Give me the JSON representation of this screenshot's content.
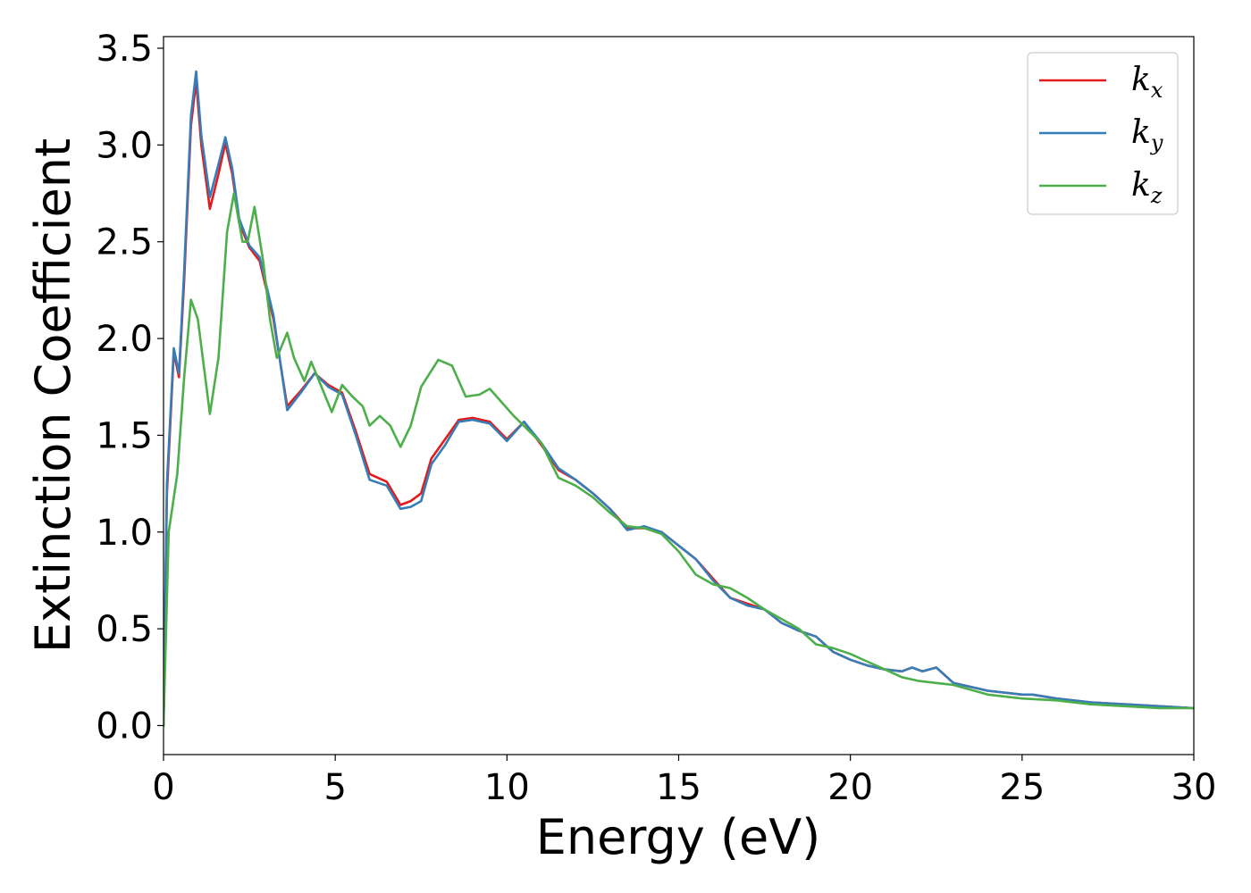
{
  "chart_data": {
    "type": "line",
    "xlabel": "Energy (eV)",
    "ylabel": "Extinction Coefficient",
    "xlim": [
      0,
      30
    ],
    "ylim": [
      -0.15,
      3.56
    ],
    "xticks": [
      "0",
      "5",
      "10",
      "15",
      "20",
      "25",
      "30"
    ],
    "yticks": [
      "0.0",
      "0.5",
      "1.0",
      "1.5",
      "2.0",
      "2.5",
      "3.0",
      "3.5"
    ],
    "grid": false,
    "legend_position": "top-right",
    "series": [
      {
        "name": "k",
        "subscript": "x",
        "color": "#e41a1c",
        "points": [
          [
            0,
            0
          ],
          [
            0.1,
            1.2
          ],
          [
            0.3,
            1.93
          ],
          [
            0.45,
            1.8
          ],
          [
            0.6,
            2.3
          ],
          [
            0.8,
            3.1
          ],
          [
            0.95,
            3.33
          ],
          [
            1.1,
            3.0
          ],
          [
            1.35,
            2.67
          ],
          [
            1.6,
            2.85
          ],
          [
            1.8,
            3.01
          ],
          [
            2.0,
            2.85
          ],
          [
            2.2,
            2.6
          ],
          [
            2.5,
            2.47
          ],
          [
            2.8,
            2.4
          ],
          [
            3.2,
            2.1
          ],
          [
            3.6,
            1.65
          ],
          [
            4.0,
            1.73
          ],
          [
            4.4,
            1.82
          ],
          [
            4.8,
            1.76
          ],
          [
            5.2,
            1.72
          ],
          [
            5.6,
            1.52
          ],
          [
            6.0,
            1.3
          ],
          [
            6.5,
            1.26
          ],
          [
            6.9,
            1.14
          ],
          [
            7.2,
            1.16
          ],
          [
            7.5,
            1.2
          ],
          [
            7.8,
            1.38
          ],
          [
            8.2,
            1.48
          ],
          [
            8.6,
            1.58
          ],
          [
            9.0,
            1.59
          ],
          [
            9.5,
            1.57
          ],
          [
            10.0,
            1.48
          ],
          [
            10.5,
            1.57
          ],
          [
            11.0,
            1.45
          ],
          [
            11.5,
            1.32
          ],
          [
            12.0,
            1.27
          ],
          [
            12.5,
            1.2
          ],
          [
            13.0,
            1.12
          ],
          [
            13.5,
            1.02
          ],
          [
            14.0,
            1.02
          ],
          [
            14.5,
            1.0
          ],
          [
            15.0,
            0.93
          ],
          [
            15.5,
            0.86
          ],
          [
            16.0,
            0.76
          ],
          [
            16.5,
            0.66
          ],
          [
            17.0,
            0.63
          ],
          [
            17.5,
            0.6
          ],
          [
            18.0,
            0.53
          ],
          [
            18.5,
            0.49
          ],
          [
            19.0,
            0.46
          ],
          [
            19.5,
            0.38
          ],
          [
            20.0,
            0.34
          ],
          [
            20.5,
            0.31
          ],
          [
            21.0,
            0.29
          ],
          [
            21.5,
            0.28
          ],
          [
            21.8,
            0.3
          ],
          [
            22.1,
            0.28
          ],
          [
            22.5,
            0.3
          ],
          [
            23.0,
            0.22
          ],
          [
            24.0,
            0.18
          ],
          [
            25.0,
            0.16
          ],
          [
            25.3,
            0.16
          ],
          [
            26.0,
            0.14
          ],
          [
            27.0,
            0.12
          ],
          [
            28.0,
            0.11
          ],
          [
            29.0,
            0.1
          ],
          [
            30.0,
            0.09
          ]
        ]
      },
      {
        "name": "k",
        "subscript": "y",
        "color": "#377eb8",
        "points": [
          [
            0,
            0
          ],
          [
            0.1,
            1.25
          ],
          [
            0.3,
            1.95
          ],
          [
            0.45,
            1.82
          ],
          [
            0.6,
            2.35
          ],
          [
            0.8,
            3.15
          ],
          [
            0.95,
            3.38
          ],
          [
            1.1,
            3.05
          ],
          [
            1.35,
            2.73
          ],
          [
            1.6,
            2.9
          ],
          [
            1.8,
            3.04
          ],
          [
            2.0,
            2.88
          ],
          [
            2.2,
            2.62
          ],
          [
            2.5,
            2.48
          ],
          [
            2.8,
            2.42
          ],
          [
            3.2,
            2.12
          ],
          [
            3.6,
            1.63
          ],
          [
            4.0,
            1.72
          ],
          [
            4.4,
            1.82
          ],
          [
            4.8,
            1.75
          ],
          [
            5.2,
            1.71
          ],
          [
            5.6,
            1.5
          ],
          [
            6.0,
            1.27
          ],
          [
            6.5,
            1.24
          ],
          [
            6.9,
            1.12
          ],
          [
            7.2,
            1.13
          ],
          [
            7.5,
            1.16
          ],
          [
            7.8,
            1.35
          ],
          [
            8.2,
            1.45
          ],
          [
            8.6,
            1.57
          ],
          [
            9.0,
            1.58
          ],
          [
            9.5,
            1.56
          ],
          [
            10.0,
            1.47
          ],
          [
            10.5,
            1.57
          ],
          [
            11.0,
            1.46
          ],
          [
            11.5,
            1.33
          ],
          [
            12.0,
            1.27
          ],
          [
            12.5,
            1.2
          ],
          [
            13.0,
            1.12
          ],
          [
            13.5,
            1.01
          ],
          [
            14.0,
            1.03
          ],
          [
            14.5,
            1.0
          ],
          [
            15.0,
            0.93
          ],
          [
            15.5,
            0.86
          ],
          [
            16.0,
            0.75
          ],
          [
            16.5,
            0.66
          ],
          [
            17.0,
            0.62
          ],
          [
            17.5,
            0.6
          ],
          [
            18.0,
            0.53
          ],
          [
            18.5,
            0.49
          ],
          [
            19.0,
            0.46
          ],
          [
            19.5,
            0.38
          ],
          [
            20.0,
            0.34
          ],
          [
            20.5,
            0.31
          ],
          [
            21.0,
            0.29
          ],
          [
            21.5,
            0.28
          ],
          [
            21.8,
            0.3
          ],
          [
            22.1,
            0.28
          ],
          [
            22.5,
            0.3
          ],
          [
            23.0,
            0.22
          ],
          [
            24.0,
            0.18
          ],
          [
            25.0,
            0.16
          ],
          [
            25.3,
            0.16
          ],
          [
            26.0,
            0.14
          ],
          [
            27.0,
            0.12
          ],
          [
            28.0,
            0.11
          ],
          [
            29.0,
            0.1
          ],
          [
            30.0,
            0.09
          ]
        ]
      },
      {
        "name": "k",
        "subscript": "z",
        "color": "#4daf4a",
        "points": [
          [
            0,
            0
          ],
          [
            0.15,
            1.0
          ],
          [
            0.4,
            1.3
          ],
          [
            0.6,
            1.8
          ],
          [
            0.8,
            2.2
          ],
          [
            1.0,
            2.1
          ],
          [
            1.35,
            1.61
          ],
          [
            1.6,
            1.9
          ],
          [
            1.85,
            2.55
          ],
          [
            2.05,
            2.75
          ],
          [
            2.3,
            2.5
          ],
          [
            2.45,
            2.5
          ],
          [
            2.65,
            2.68
          ],
          [
            2.9,
            2.4
          ],
          [
            3.1,
            2.1
          ],
          [
            3.3,
            1.9
          ],
          [
            3.6,
            2.03
          ],
          [
            3.8,
            1.9
          ],
          [
            4.1,
            1.78
          ],
          [
            4.3,
            1.88
          ],
          [
            4.6,
            1.75
          ],
          [
            4.9,
            1.62
          ],
          [
            5.2,
            1.76
          ],
          [
            5.5,
            1.7
          ],
          [
            5.8,
            1.65
          ],
          [
            6.0,
            1.55
          ],
          [
            6.3,
            1.6
          ],
          [
            6.6,
            1.55
          ],
          [
            6.9,
            1.44
          ],
          [
            7.2,
            1.55
          ],
          [
            7.5,
            1.75
          ],
          [
            8.0,
            1.89
          ],
          [
            8.4,
            1.86
          ],
          [
            8.8,
            1.7
          ],
          [
            9.2,
            1.71
          ],
          [
            9.5,
            1.74
          ],
          [
            9.8,
            1.68
          ],
          [
            10.2,
            1.6
          ],
          [
            10.6,
            1.53
          ],
          [
            11.0,
            1.46
          ],
          [
            11.5,
            1.28
          ],
          [
            12.0,
            1.24
          ],
          [
            12.5,
            1.18
          ],
          [
            13.0,
            1.1
          ],
          [
            13.5,
            1.03
          ],
          [
            14.0,
            1.02
          ],
          [
            14.5,
            0.99
          ],
          [
            15.0,
            0.9
          ],
          [
            15.5,
            0.78
          ],
          [
            16.0,
            0.73
          ],
          [
            16.5,
            0.71
          ],
          [
            17.0,
            0.66
          ],
          [
            17.5,
            0.6
          ],
          [
            18.0,
            0.55
          ],
          [
            18.5,
            0.5
          ],
          [
            19.0,
            0.42
          ],
          [
            19.5,
            0.4
          ],
          [
            20.0,
            0.37
          ],
          [
            20.5,
            0.33
          ],
          [
            21.0,
            0.29
          ],
          [
            21.5,
            0.25
          ],
          [
            22.0,
            0.23
          ],
          [
            22.5,
            0.22
          ],
          [
            23.0,
            0.21
          ],
          [
            24.0,
            0.16
          ],
          [
            25.0,
            0.14
          ],
          [
            26.0,
            0.13
          ],
          [
            27.0,
            0.11
          ],
          [
            28.0,
            0.1
          ],
          [
            29.0,
            0.09
          ],
          [
            30.0,
            0.09
          ]
        ]
      }
    ]
  }
}
